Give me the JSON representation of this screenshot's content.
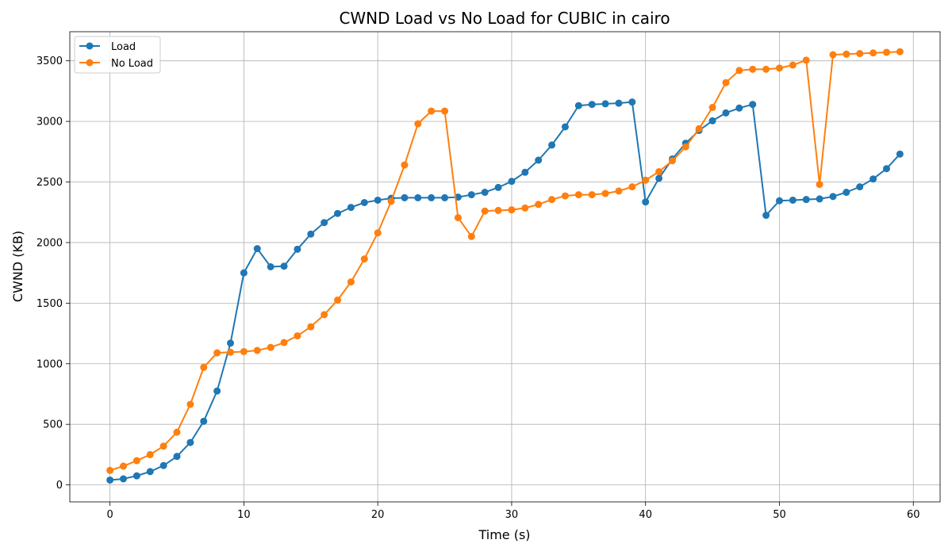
{
  "chart_data": {
    "type": "line",
    "title": "CWND Load vs No Load for CUBIC in cairo",
    "xlabel": "Time (s)",
    "ylabel": "CWND (KB)",
    "xlim": [
      -3,
      62
    ],
    "ylim": [
      -140,
      3740
    ],
    "xticks": [
      0,
      10,
      20,
      30,
      40,
      50,
      60
    ],
    "yticks": [
      0,
      500,
      1000,
      1500,
      2000,
      2500,
      3000,
      3500
    ],
    "grid": true,
    "legend_position": "top-left",
    "x": [
      0,
      1,
      2,
      3,
      4,
      5,
      6,
      7,
      8,
      9,
      10,
      11,
      12,
      13,
      14,
      15,
      16,
      17,
      18,
      19,
      20,
      21,
      22,
      23,
      24,
      25,
      26,
      27,
      28,
      29,
      30,
      31,
      32,
      33,
      34,
      35,
      36,
      37,
      38,
      39,
      40,
      41,
      42,
      43,
      44,
      45,
      46,
      47,
      48,
      49,
      50,
      51,
      52,
      53,
      54,
      55,
      56,
      57,
      58,
      59
    ],
    "series": [
      {
        "name": "Load",
        "color": "#1f77b4",
        "values": [
          40,
          50,
          75,
          110,
          160,
          235,
          350,
          525,
          775,
          1170,
          1750,
          1950,
          1800,
          1805,
          1945,
          2070,
          2165,
          2240,
          2290,
          2330,
          2350,
          2365,
          2370,
          2370,
          2370,
          2370,
          2375,
          2395,
          2415,
          2455,
          2505,
          2580,
          2680,
          2805,
          2955,
          3130,
          3140,
          3145,
          3150,
          3160,
          2335,
          2530,
          2690,
          2820,
          2925,
          3005,
          3070,
          3110,
          3140,
          2225,
          2345,
          2350,
          2355,
          2360,
          2380,
          2415,
          2460,
          2525,
          2610,
          2730
        ]
      },
      {
        "name": "No Load",
        "color": "#ff7f0e",
        "values": [
          120,
          155,
          200,
          250,
          320,
          435,
          665,
          970,
          1090,
          1095,
          1100,
          1110,
          1135,
          1175,
          1230,
          1305,
          1405,
          1525,
          1675,
          1865,
          2080,
          2340,
          2640,
          2980,
          3085,
          3085,
          2205,
          2050,
          2260,
          2265,
          2270,
          2285,
          2315,
          2355,
          2385,
          2395,
          2395,
          2405,
          2425,
          2460,
          2515,
          2585,
          2675,
          2790,
          2940,
          3115,
          3320,
          3420,
          3430,
          3430,
          3440,
          3465,
          3505,
          2480,
          3550,
          3555,
          3560,
          3565,
          3570,
          3575
        ]
      }
    ]
  }
}
